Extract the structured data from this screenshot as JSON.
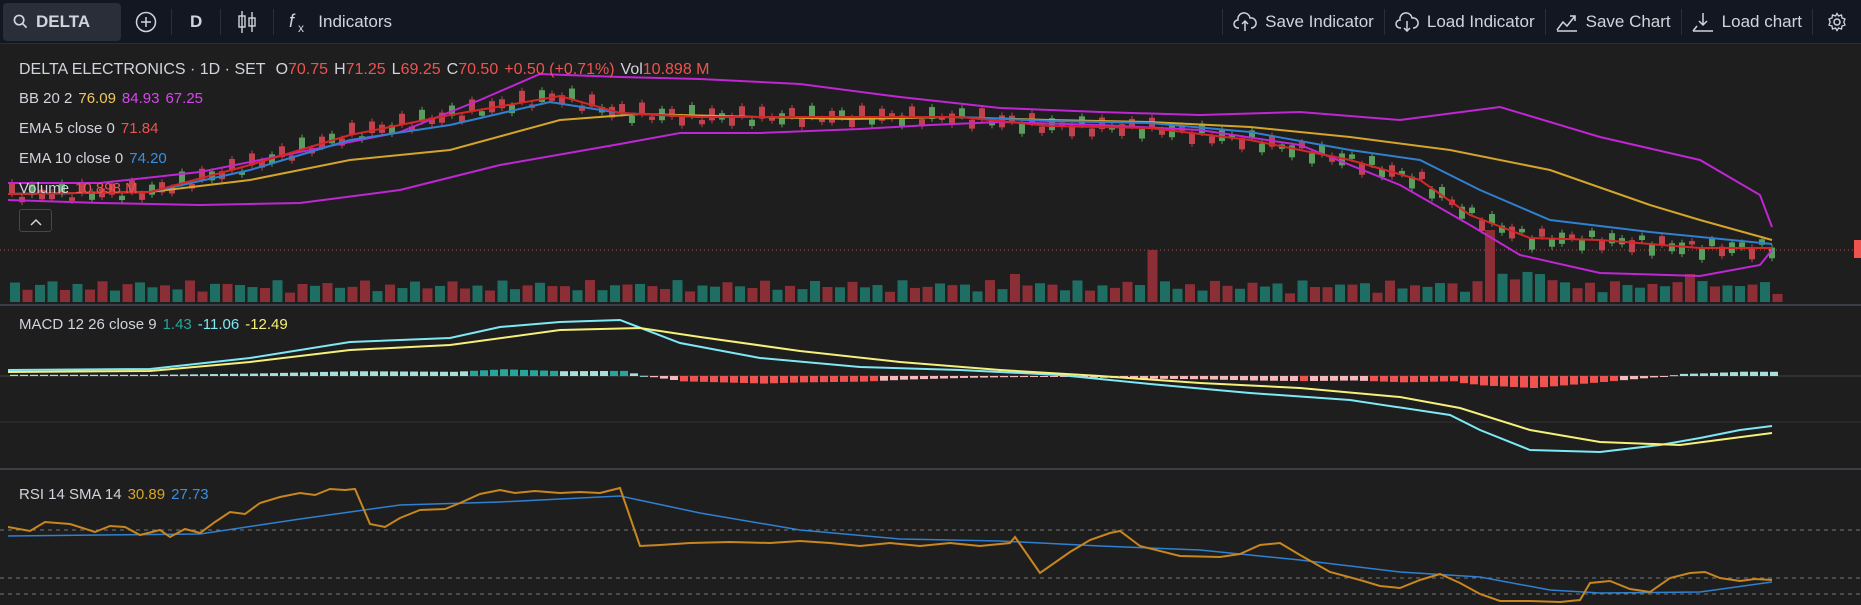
{
  "toolbar": {
    "symbol": "DELTA",
    "interval": "D",
    "indicators_label": "Indicators",
    "save_indicator_label": "Save Indicator",
    "load_indicator_label": "Load Indicator",
    "save_chart_label": "Save Chart",
    "load_chart_label": "Load chart"
  },
  "legend": {
    "title": "DELTA ELECTRONICS · 1D · SET",
    "o_label": "O",
    "o_value": "70.75",
    "h_label": "H",
    "h_value": "71.25",
    "l_label": "L",
    "l_value": "69.25",
    "c_label": "C",
    "c_value": "70.50",
    "change": "+0.50 (+0.71%)",
    "vol_label": "Vol",
    "vol_value": "10.898 M",
    "bb_label": "BB 20 2",
    "bb_basis": "76.09",
    "bb_upper": "84.93",
    "bb_lower": "67.25",
    "ema5_label": "EMA 5 close 0",
    "ema5_value": "71.84",
    "ema10_label": "EMA 10 close 0",
    "ema10_value": "74.20",
    "volume_label": "Volume",
    "volume_value": "10.898 M",
    "macd_label": "MACD 12 26 close 9",
    "macd_hist": "1.43",
    "macd_value": "-11.06",
    "macd_signal": "-12.49",
    "rsi_label": "RSI 14 SMA 14",
    "rsi_value": "30.89",
    "rsi_sma": "27.73"
  },
  "colors": {
    "background": "#1e1e1e",
    "toolbar_bg": "#131722",
    "up": "#26a69a",
    "down": "#ef5350",
    "bb": "#c026d3",
    "bb_basis": "#d4a52a",
    "ema5": "#d62728",
    "ema10": "#2f80d1",
    "macd": "#7ee8f5",
    "signal": "#f5f07a",
    "rsi": "#c8861f",
    "rsi_sma": "#2f80d1"
  },
  "icons": [
    "search-icon",
    "plus-circle-icon",
    "candles-icon",
    "fx-icon",
    "cloud-upload-icon",
    "cloud-download-icon",
    "chart-up-icon",
    "chart-down-icon",
    "gear-icon",
    "chevron-up-icon"
  ]
}
